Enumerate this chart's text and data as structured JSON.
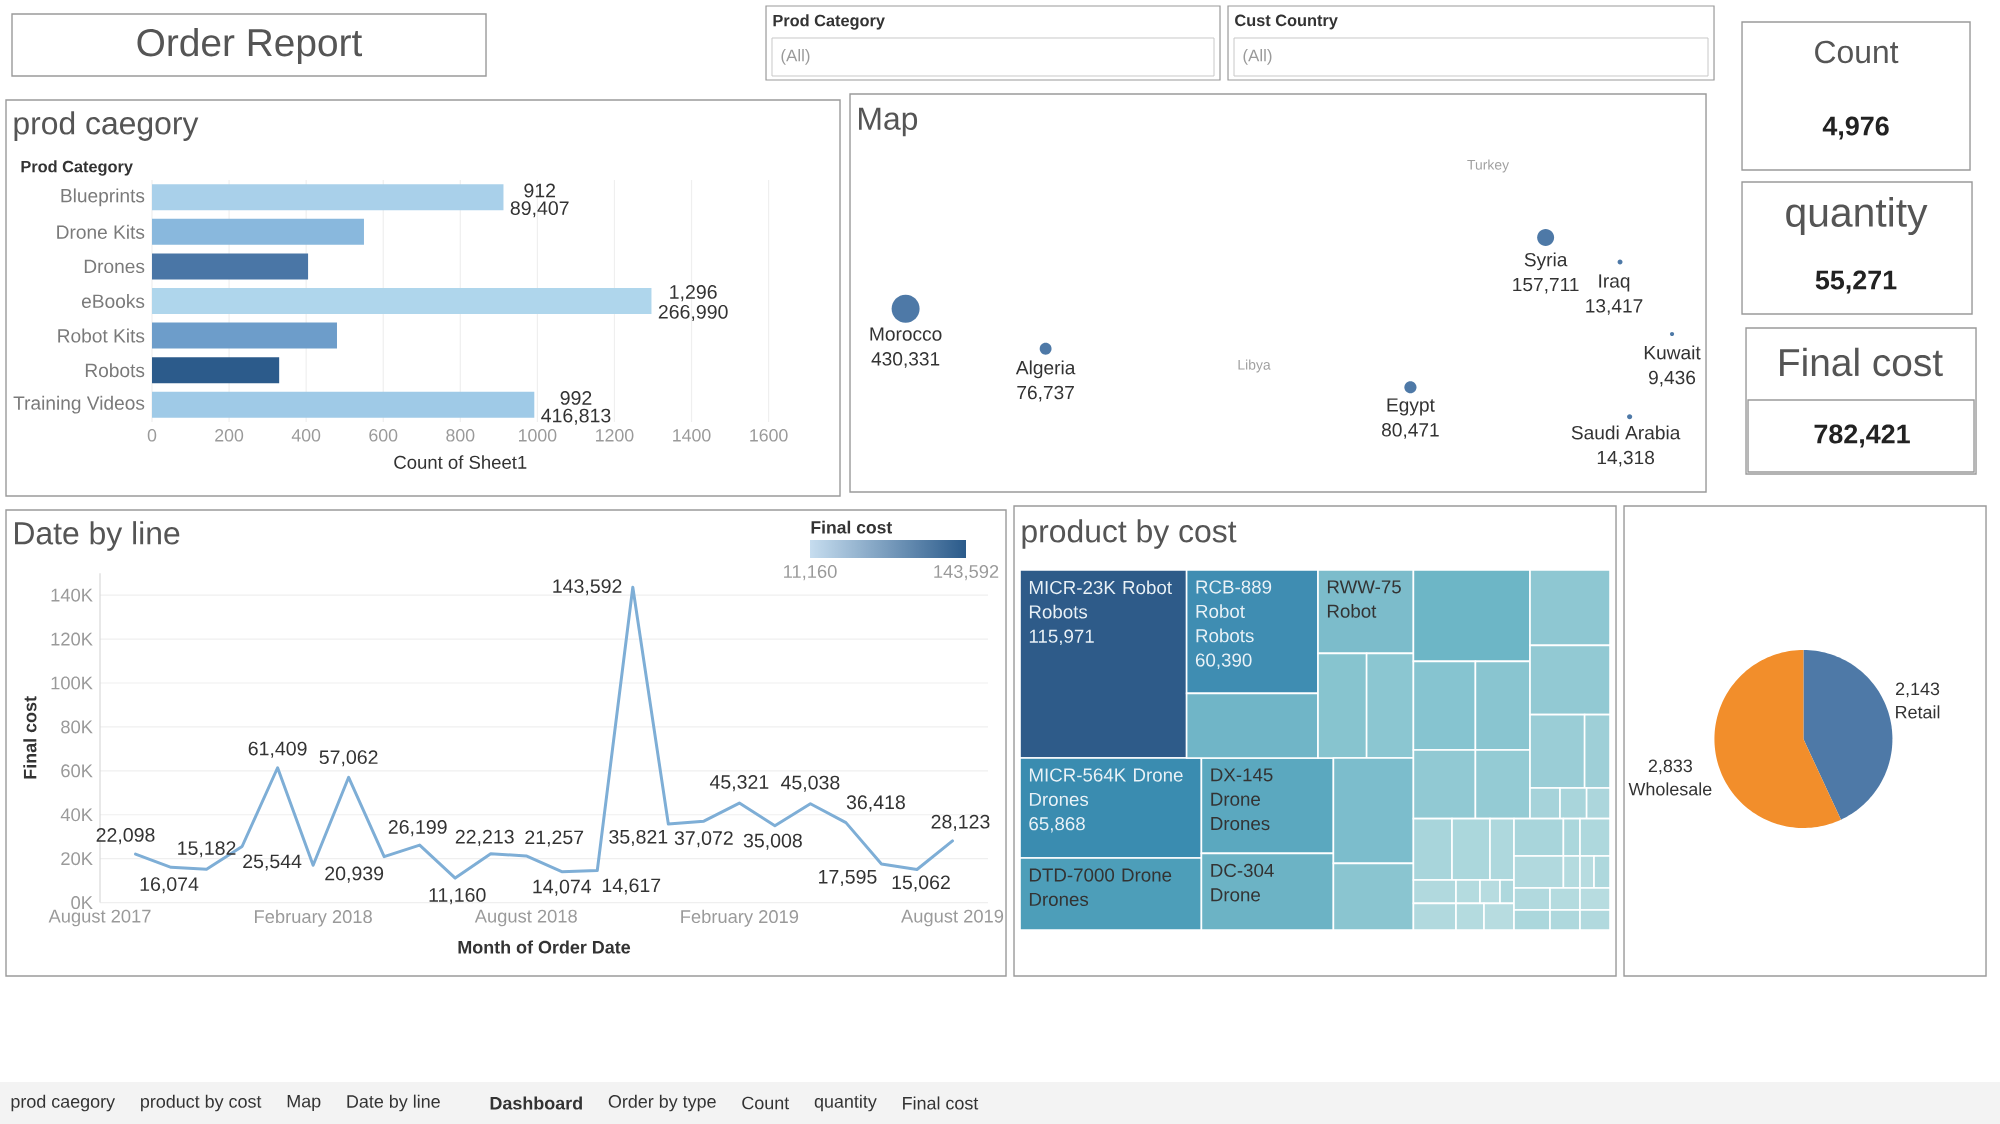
{
  "chart_data": [
    {
      "type": "other",
      "title": "Order Report",
      "categories": [
        "Prod Category",
        "Cust Country"
      ],
      "annotations": [
        "(All)",
        "(All)"
      ]
    },
    {
      "type": "other",
      "categories": [
        "Count",
        "quantity",
        "Final cost"
      ],
      "value_labels": [
        "4,976",
        "55,271",
        "782,421"
      ]
    },
    {
      "type": "bar",
      "orientation": "horizontal",
      "title": "prod caegory",
      "ylabel": "Prod Category",
      "xlabel": "Count of Sheet1",
      "categories": [
        "Blueprints",
        "Drone Kits",
        "Drones",
        "eBooks",
        "Robot Kits",
        "Robots",
        "Training Videos"
      ],
      "values": [
        912,
        550,
        405,
        1296,
        480,
        330,
        992
      ],
      "colors": [
        "#a9d0ea",
        "#89b8dd",
        "#4a76a6",
        "#afd6ec",
        "#6d9dca",
        "#2c5b8b",
        "#9fcae7"
      ],
      "value_labels": [
        "912",
        null,
        null,
        "1,296",
        null,
        null,
        "992"
      ],
      "annotations": [
        {
          "text": "89,407",
          "x": 912,
          "y": "Blueprints"
        },
        {
          "text": "266,990",
          "x": 1296,
          "y": "eBooks"
        },
        {
          "text": "416,813",
          "x": 992,
          "y": "Training Videos"
        }
      ],
      "xlim": [
        0,
        1600
      ],
      "xticks": [
        0,
        200,
        400,
        600,
        800,
        1000,
        1200,
        1400,
        1600
      ],
      "grid": "x"
    },
    {
      "type": "other",
      "title": "Map",
      "categories": [
        "Morocco",
        "Algeria",
        "Egypt",
        "Syria",
        "Iraq",
        "Saudi Arabia",
        "Kuwait"
      ],
      "values": [
        430331,
        76737,
        80471,
        157711,
        13417,
        14318,
        9436
      ],
      "value_labels": [
        "430,331",
        "76,737",
        "80,471",
        "157,711",
        "13,417",
        "14,318",
        "9,436"
      ],
      "color": "#4e79a7",
      "annotations": [
        "Turkey",
        "Libya"
      ]
    },
    {
      "type": "line",
      "title": "Date by line",
      "xlabel": "Month of Order Date",
      "ylabel": "Final cost",
      "x": [
        "2017-09",
        "2017-10",
        "2017-11",
        "2017-12",
        "2018-01",
        "2018-02",
        "2018-03",
        "2018-04",
        "2018-05",
        "2018-06",
        "2018-07",
        "2018-08",
        "2018-09",
        "2018-10",
        "2018-11",
        "2018-12",
        "2019-01",
        "2019-02",
        "2019-03",
        "2019-04",
        "2019-05",
        "2019-06",
        "2019-07",
        "2019-08"
      ],
      "values": [
        22098,
        16074,
        15182,
        25544,
        61409,
        17000,
        57062,
        20939,
        26199,
        11160,
        22213,
        21257,
        14074,
        14617,
        143592,
        35821,
        37072,
        45321,
        35008,
        45038,
        36418,
        17595,
        15062,
        28123
      ],
      "color": "#7eaed6",
      "value_labels": [
        "22,098",
        "16,074",
        "15,182",
        "25,544",
        "61,409",
        null,
        "57,062",
        "20,939",
        "26,199",
        "11,160",
        "22,213",
        "21,257",
        "14,074",
        "14,617",
        "143,592",
        "35,821",
        "37,072",
        "45,321",
        "35,008",
        "45,038",
        "36,418",
        "17,595",
        "15,062",
        "28,123"
      ],
      "xlim": [
        "2017-08",
        "2019-09"
      ],
      "xticks": [
        {
          "value": "2017-08",
          "label": "August 2017"
        },
        {
          "value": "2018-02",
          "label": "February 2018"
        },
        {
          "value": "2018-08",
          "label": "August 2018"
        },
        {
          "value": "2019-02",
          "label": "February 2019"
        },
        {
          "value": "2019-08",
          "label": "August 2019"
        }
      ],
      "ylim": [
        0,
        150000
      ],
      "yticks": [
        {
          "value": 0,
          "label": "0K"
        },
        {
          "value": 20000,
          "label": "20K"
        },
        {
          "value": 40000,
          "label": "40K"
        },
        {
          "value": 60000,
          "label": "60K"
        },
        {
          "value": 80000,
          "label": "80K"
        },
        {
          "value": 100000,
          "label": "100K"
        },
        {
          "value": 120000,
          "label": "120K"
        },
        {
          "value": 140000,
          "label": "140K"
        }
      ],
      "grid": "y",
      "clabel": "Final cost",
      "clim": [
        11160,
        143592
      ],
      "cticks": [
        {
          "value": 11160,
          "label": "11,160"
        },
        {
          "value": 143592,
          "label": "143,592"
        }
      ]
    },
    {
      "type": "other",
      "title": "product by cost",
      "categories": [
        "MICR-23K Robot",
        "RCB-889 Robot",
        "RWW-75 Robot",
        "MICR-564K Drone",
        "DX-145 Drone",
        "DTD-7000 Drone",
        "DC-304 Drone",
        null,
        null,
        null,
        null,
        null,
        null,
        null,
        null,
        null,
        null,
        null,
        null,
        null,
        null,
        null,
        null,
        null,
        null,
        null,
        null,
        null,
        null,
        null,
        null,
        null,
        null,
        null,
        null,
        null,
        null,
        null,
        null,
        null,
        null,
        null,
        null,
        null,
        null,
        null,
        null
      ],
      "colors": [
        "#2e5b89",
        "#3f8db2",
        "#7cbccb",
        "#3a8cb0",
        "#5ba8bf",
        "#4d9eb9",
        "#6cb3c5",
        "#70b5c7",
        "#87c4cf",
        "#8bc6d1",
        "#7cbdcc",
        "#8ac5d0",
        "#6db6c6",
        "#86c4d0",
        "#89c5d0",
        "#91c9d3",
        "#94cbd4",
        "#8ec7d2",
        "#92c9d3",
        "#9acdd6",
        "#9ecfd7",
        "#a6d3da",
        "#a9d5db",
        "#acd6dc",
        "#a8d5db",
        "#abd7dc",
        "#aed8dd",
        "#b1d9de",
        "#b4dbdf",
        "#b7dce0",
        "#aed8dd",
        "#b1d9de",
        "#b4dbdf",
        "#b7dce0",
        "#a8d5db",
        "#abd7dc",
        "#aed8dd",
        "#b1d9de",
        "#b4dbdf",
        "#b7dce0",
        "#aed8dd",
        "#b1d9de",
        "#b4dbdf",
        "#b7dce0",
        "#abd7dc",
        "#aed8dd",
        "#b1d9de"
      ],
      "value_labels": [
        "115,971",
        "60,390",
        null,
        "65,868",
        null,
        null,
        null,
        null,
        null,
        null,
        null,
        null,
        null,
        null,
        null,
        null,
        null,
        null,
        null,
        null,
        null,
        null,
        null,
        null,
        null,
        null,
        null,
        null,
        null,
        null,
        null,
        null,
        null,
        null,
        null,
        null,
        null,
        null,
        null,
        null,
        null,
        null,
        null,
        null,
        null,
        null,
        null
      ],
      "annotations": [
        {
          "text": "Robots",
          "x": "MICR-23K Robot"
        },
        {
          "text": "Robots",
          "x": "RCB-889 Robot"
        },
        {
          "text": "Drones",
          "x": "MICR-564K Drone"
        },
        {
          "text": "Drones",
          "x": "DX-145 Drone"
        },
        {
          "text": "Drones",
          "x": "DTD-7000 Drone"
        }
      ]
    },
    {
      "type": "pie",
      "categories": [
        "Retail",
        "Wholesale"
      ],
      "values": [
        2143,
        2833
      ],
      "colors": [
        "#4e79a7",
        "#f28e2b"
      ],
      "value_labels": [
        "2,143",
        "2,833"
      ]
    },
    {
      "type": "other",
      "categories": [
        "prod caegory",
        "product by cost",
        "Map",
        "Date by line",
        "Dashboard",
        "Order by type",
        "Count",
        "quantity",
        "Final cost"
      ]
    }
  ]
}
